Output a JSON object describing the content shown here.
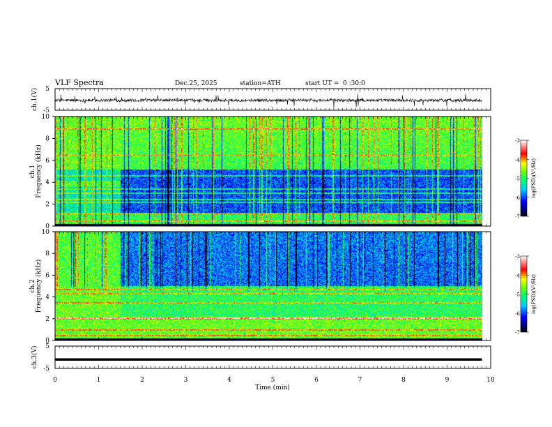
{
  "header": {
    "title": "VLF Spectra",
    "date": "Dec.25, 2025",
    "station": "station=ATH",
    "start_label": "start UT =",
    "start_value": "0 :30:0"
  },
  "chart_data": [
    {
      "type": "line",
      "name": "ch1-waveform",
      "ylabel": "ch.1(V)",
      "ylim": [
        -5,
        5
      ],
      "yticks": [
        "5",
        "-5"
      ],
      "xlim": [
        0,
        10
      ],
      "baseline": -0.4,
      "x_end": 9.8
    },
    {
      "type": "heatmap",
      "name": "ch1-spectrogram",
      "ylabel_1": "ch.1",
      "ylabel_2": "Frequency (kHz)",
      "xlim": [
        0,
        10
      ],
      "ylim": [
        0,
        10
      ],
      "yticks": [
        "0",
        "2",
        "4",
        "6",
        "8",
        "10"
      ],
      "x_end": 9.8,
      "colorbar": {
        "label": "log(PSD)(V²/Hz)",
        "range": [
          -7,
          -3
        ],
        "ticks": [
          "-3",
          "-4",
          "-5",
          "-6",
          "-7"
        ],
        "colors": [
          "#000000",
          "#0000ff",
          "#00ffff",
          "#00ff00",
          "#ffff00",
          "#ff0000",
          "#ffffff"
        ]
      },
      "features": {
        "early_segment_end_min": 1.5,
        "early_band_khz": [
          3.6,
          4.2
        ],
        "quiet_band_khz": [
          1.2,
          5.2
        ],
        "harmonic_lines_khz": [
          0.5,
          1.2,
          2.2,
          2.45,
          3.0,
          3.4,
          4.6,
          6.5,
          8.9
        ]
      }
    },
    {
      "type": "heatmap",
      "name": "ch2-spectrogram",
      "ylabel_1": "ch.2",
      "ylabel_2": "Frequency (kHz)",
      "xlim": [
        0,
        10
      ],
      "ylim": [
        0,
        10
      ],
      "yticks": [
        "0",
        "2",
        "4",
        "6",
        "8",
        "10"
      ],
      "x_end": 9.8,
      "colorbar": {
        "label": "log(PSD)(V²/Hz)",
        "range": [
          -7,
          -3
        ],
        "ticks": [
          "-3",
          "-4",
          "-5",
          "-6",
          "-7"
        ],
        "colors": [
          "#000000",
          "#0000ff",
          "#00ffff",
          "#00ff00",
          "#ffff00",
          "#ff0000",
          "#ffffff"
        ]
      },
      "features": {
        "early_segment_end_min": 1.5,
        "quiet_band_khz": [
          5.0,
          10.0
        ],
        "harmonic_lines_khz": [
          0.5,
          1.0,
          2.0,
          2.1,
          3.5,
          4.3,
          4.7
        ]
      }
    },
    {
      "type": "line",
      "name": "ch3-waveform",
      "ylabel": "ch.3(V)",
      "ylim": [
        -5,
        5
      ],
      "yticks": [
        "5",
        "-5"
      ],
      "xlim": [
        0,
        10
      ],
      "value": -1.0,
      "x_end": 9.8,
      "xlabel": "Time (min)",
      "xticks": [
        "0",
        "1",
        "2",
        "3",
        "4",
        "5",
        "6",
        "7",
        "8",
        "9",
        "10"
      ]
    }
  ]
}
